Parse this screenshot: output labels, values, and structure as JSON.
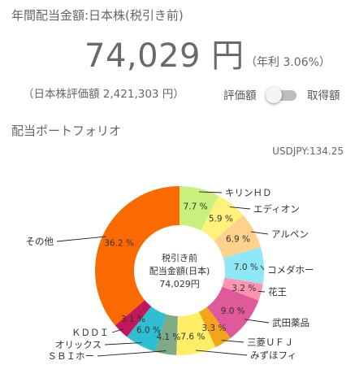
{
  "header": {
    "title": "年間配当金額:日本株(税引き前)",
    "amount": "74,029 円",
    "yield": "（年利 3.06%）",
    "valuation": "（日本株評価額 2,421,303 円）"
  },
  "toggle": {
    "left_label": "評価額",
    "right_label": "取得額",
    "state": "off"
  },
  "portfolio": {
    "section_title": "配当ポートフォリオ",
    "fx_rate": "USDJPY:134.25"
  },
  "chart_data": {
    "type": "pie",
    "donut": true,
    "center_text": [
      "税引き前",
      "配当金額(日本)",
      "74,029円"
    ],
    "slices": [
      {
        "label": "キリンＨＤ",
        "value": 7.7,
        "display": "7.7 %",
        "color": "#c7f07c"
      },
      {
        "label": "エディオン",
        "value": 5.9,
        "display": "5.9 %",
        "color": "#fff27a"
      },
      {
        "label": "アルペン",
        "value": 6.9,
        "display": "6.9 %",
        "color": "#ffd18a"
      },
      {
        "label": "コメダホー",
        "value": 7.0,
        "display": "7.0 %",
        "color": "#8fe8f5"
      },
      {
        "label": "花王",
        "value": 3.2,
        "display": "3.2 %",
        "color": "#ff94b2"
      },
      {
        "label": "武田薬品",
        "value": 9.0,
        "display": "9.0 %",
        "color": "#e0599a"
      },
      {
        "label": "三菱ＵＦＪ",
        "value": 3.3,
        "display": "3.3 %",
        "color": "#f4a418"
      },
      {
        "label": "みずほフィ",
        "value": 7.6,
        "display": "7.6 %",
        "color": "#ffee66"
      },
      {
        "label": "ＳＢＩホー",
        "value": 4.1,
        "display": "4.1 %",
        "color": "#7eab86"
      },
      {
        "label": "オリックス",
        "value": 6.0,
        "display": "6.0 %",
        "color": "#30bfd2"
      },
      {
        "label": "ＫＤＤＩ",
        "value": 3.1,
        "display": "3.1 %",
        "color": "#c2185b"
      },
      {
        "label": "その他",
        "value": 36.2,
        "display": "36.2 %",
        "color": "#fb6a00"
      }
    ]
  }
}
